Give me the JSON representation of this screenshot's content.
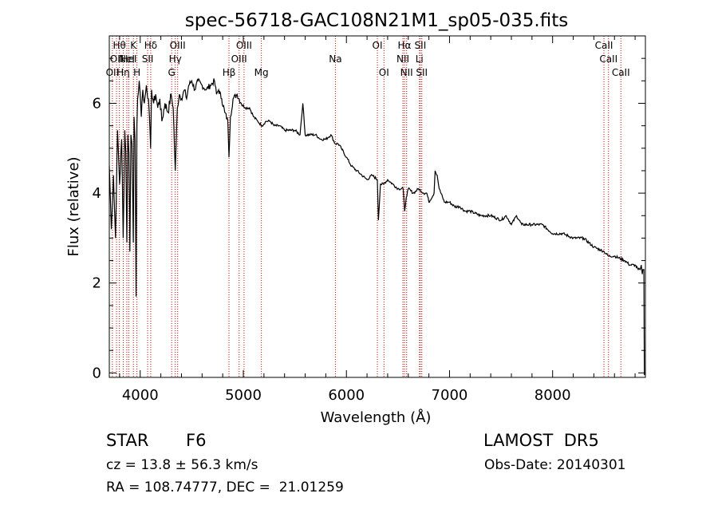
{
  "chart_data": {
    "type": "line",
    "title": "spec-56718-GAC108N21M1_sp05-035.fits",
    "xlabel": "Wavelength (Å)",
    "ylabel": "Flux (relative)",
    "xlim": [
      3700,
      8900
    ],
    "ylim": [
      -0.1,
      7.5
    ],
    "x_ticks": [
      4000,
      5000,
      6000,
      7000,
      8000
    ],
    "y_ticks": [
      0,
      2,
      4,
      6
    ],
    "grid": false,
    "line_color": "#000000",
    "marker_line_color": "#cc0000",
    "series": [
      {
        "x": [
          3700,
          3720,
          3740,
          3760,
          3780,
          3800,
          3820,
          3835,
          3850,
          3860,
          3870,
          3880,
          3890,
          3900,
          3910,
          3920,
          3933,
          3940,
          3950,
          3960,
          3968,
          3975,
          3990,
          4000,
          4010,
          4025,
          4040,
          4060,
          4080,
          4101,
          4110,
          4130,
          4150,
          4170,
          4190,
          4210,
          4240,
          4270,
          4300,
          4320,
          4340,
          4360,
          4380,
          4400,
          4430,
          4450,
          4470,
          4500,
          4530,
          4560,
          4600,
          4640,
          4680,
          4720,
          4740,
          4760,
          4790,
          4820,
          4850,
          4861,
          4875,
          4900,
          4940,
          4980,
          5020,
          5060,
          5100,
          5140,
          5180,
          5220,
          5260,
          5300,
          5350,
          5400,
          5450,
          5500,
          5550,
          5577,
          5600,
          5650,
          5700,
          5750,
          5800,
          5850,
          5890,
          5920,
          5950,
          6000,
          6050,
          6100,
          6150,
          6200,
          6250,
          6300,
          6310,
          6330,
          6360,
          6400,
          6450,
          6500,
          6550,
          6565,
          6580,
          6600,
          6650,
          6700,
          6750,
          6780,
          6800,
          6850,
          6860,
          6880,
          6900,
          6950,
          7000,
          7050,
          7100,
          7150,
          7200,
          7300,
          7400,
          7500,
          7550,
          7600,
          7650,
          7700,
          7800,
          7900,
          8000,
          8100,
          8200,
          8300,
          8400,
          8500,
          8540,
          8600,
          8700,
          8750,
          8800,
          8830,
          8850,
          8860,
          8870,
          8875,
          8885,
          8890
        ],
        "y": [
          4.6,
          3.2,
          4.4,
          3.0,
          5.4,
          4.2,
          5.2,
          3.0,
          5.4,
          4.9,
          2.9,
          5.3,
          4.9,
          2.7,
          5.3,
          5.1,
          2.9,
          5.7,
          5.2,
          1.7,
          5.5,
          6.1,
          6.5,
          6.2,
          5.7,
          6.3,
          6.0,
          6.4,
          6.1,
          5.0,
          6.3,
          6.0,
          6.2,
          5.9,
          6.1,
          5.6,
          6.0,
          5.8,
          6.2,
          5.9,
          4.5,
          5.9,
          6.2,
          6.1,
          6.3,
          6.1,
          6.4,
          6.5,
          6.3,
          6.5,
          6.4,
          6.3,
          6.4,
          6.5,
          6.2,
          6.3,
          6.1,
          5.8,
          5.6,
          4.8,
          5.7,
          6.1,
          6.2,
          6.0,
          5.9,
          5.9,
          5.7,
          5.6,
          5.5,
          5.6,
          5.6,
          5.5,
          5.5,
          5.4,
          5.4,
          5.4,
          5.3,
          6.0,
          5.3,
          5.3,
          5.3,
          5.2,
          5.2,
          5.3,
          5.1,
          5.1,
          5.0,
          4.8,
          4.6,
          4.5,
          4.4,
          4.3,
          4.4,
          4.3,
          3.4,
          4.2,
          4.2,
          4.3,
          4.2,
          4.1,
          4.1,
          3.6,
          3.9,
          4.1,
          4.0,
          4.1,
          4.0,
          4.0,
          3.8,
          4.0,
          4.5,
          4.4,
          4.1,
          3.8,
          3.8,
          3.7,
          3.7,
          3.6,
          3.6,
          3.5,
          3.5,
          3.4,
          3.5,
          3.3,
          3.5,
          3.3,
          3.3,
          3.3,
          3.1,
          3.1,
          3.0,
          3.0,
          2.8,
          2.7,
          2.6,
          2.6,
          2.5,
          2.4,
          2.4,
          2.3,
          2.3,
          2.4,
          2.2,
          2.3,
          2.3,
          -0.05
        ]
      }
    ],
    "line_markers": [
      {
        "x": 3730,
        "label": "OII",
        "row": 2
      },
      {
        "x": 3770,
        "label": "OII",
        "row": 1
      },
      {
        "x": 3798,
        "label": "Hθ",
        "row": 0
      },
      {
        "x": 3835,
        "label": "Hη",
        "row": 2
      },
      {
        "x": 3870,
        "label": "NeI",
        "row": 1
      },
      {
        "x": 3889,
        "label": "HeI",
        "row": 1
      },
      {
        "x": 3934,
        "label": "K",
        "row": 0
      },
      {
        "x": 3968,
        "label": "H",
        "row": 2
      },
      {
        "x": 4072,
        "label": "SII",
        "row": 1
      },
      {
        "x": 4102,
        "label": "Hδ",
        "row": 0
      },
      {
        "x": 4305,
        "label": "G",
        "row": 2
      },
      {
        "x": 4340,
        "label": "Hγ",
        "row": 1
      },
      {
        "x": 4363,
        "label": "OIII",
        "row": 0
      },
      {
        "x": 4861,
        "label": "Hβ",
        "row": 2
      },
      {
        "x": 4959,
        "label": "OIII",
        "row": 1
      },
      {
        "x": 5007,
        "label": "OIII",
        "row": 0
      },
      {
        "x": 5175,
        "label": "Mg",
        "row": 2
      },
      {
        "x": 5893,
        "label": "Na",
        "row": 1
      },
      {
        "x": 6300,
        "label": "OI",
        "row": 0
      },
      {
        "x": 6364,
        "label": "OI",
        "row": 2
      },
      {
        "x": 6548,
        "label": "NII",
        "row": 1
      },
      {
        "x": 6563,
        "label": "Hα",
        "row": 0
      },
      {
        "x": 6584,
        "label": "NII",
        "row": 2
      },
      {
        "x": 6708,
        "label": "Li",
        "row": 1
      },
      {
        "x": 6717,
        "label": "SII",
        "row": 0
      },
      {
        "x": 6731,
        "label": "SII",
        "row": 2
      },
      {
        "x": 8498,
        "label": "CaII",
        "row": 0
      },
      {
        "x": 8542,
        "label": "CaII",
        "row": 1
      },
      {
        "x": 8662,
        "label": "CaII",
        "row": 2
      }
    ]
  },
  "info": {
    "class": "STAR",
    "subclass": "F6",
    "survey": "LAMOST  DR5",
    "redshift": "cz = 13.8 ± 56.3 km/s",
    "obs_date": "Obs-Date: 20140301",
    "coords": "RA = 108.74777, DEC =  21.01259"
  }
}
